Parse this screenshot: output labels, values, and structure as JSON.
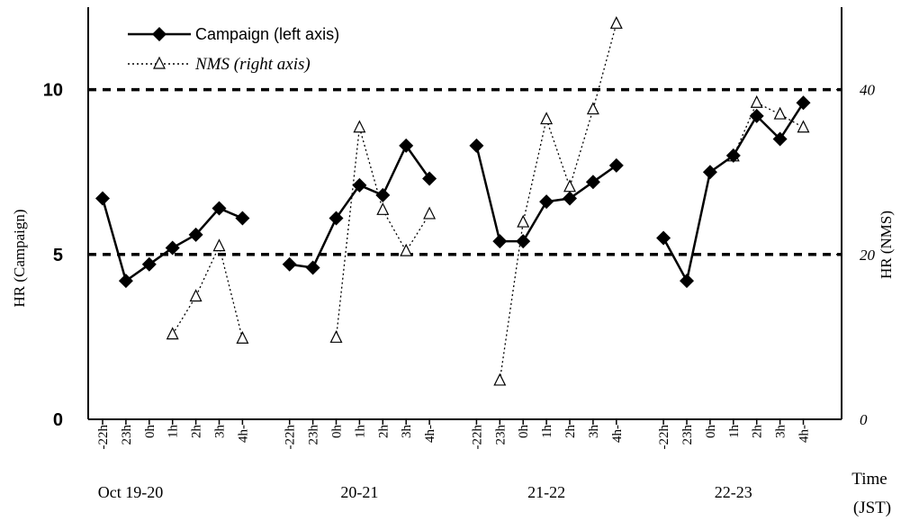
{
  "chart_data": {
    "type": "line",
    "title": "",
    "xlabel": "Time (JST)",
    "xlabel_lines": [
      "Time",
      "(JST)"
    ],
    "ylabel_left": "HR (Campaign)",
    "ylabel_right": "HR (NMS)",
    "ylim_left": [
      0,
      12.5
    ],
    "ylim_right": [
      0,
      50
    ],
    "yticks_left": [
      0,
      5,
      10
    ],
    "yticks_right": [
      0,
      20,
      40
    ],
    "reference_lines_left": [
      5,
      10
    ],
    "groups": [
      {
        "label": "Oct 19-20",
        "categories": [
          "-22h",
          "23h",
          "0h",
          "1h",
          "2h",
          "3h",
          "4h-"
        ]
      },
      {
        "label": "20-21",
        "categories": [
          "-22h",
          "23h",
          "0h",
          "1h",
          "2h",
          "3h",
          "4h-"
        ]
      },
      {
        "label": "21-22",
        "categories": [
          "-22h",
          "23h",
          "0h",
          "1h",
          "2h",
          "3h",
          "4h-"
        ]
      },
      {
        "label": "22-23",
        "categories": [
          "-22h",
          "23h",
          "0h",
          "1h",
          "2h",
          "3h",
          "4h-"
        ]
      }
    ],
    "series": [
      {
        "name": "Campaign (left axis)",
        "axis": "left",
        "marker": "diamond",
        "line": "solid",
        "values": [
          [
            6.7,
            4.2,
            4.7,
            5.2,
            5.6,
            6.4,
            6.1
          ],
          [
            4.7,
            4.6,
            6.1,
            7.1,
            6.8,
            8.3,
            7.3
          ],
          [
            8.3,
            5.4,
            5.4,
            6.6,
            6.7,
            7.2,
            7.7
          ],
          [
            5.5,
            4.2,
            7.5,
            8.0,
            9.2,
            8.5,
            9.6
          ]
        ]
      },
      {
        "name": "NMS (right axis)",
        "axis": "right",
        "marker": "triangle",
        "line": "dotted",
        "values": [
          [
            null,
            null,
            null,
            10.3,
            14.9,
            21.0,
            9.8
          ],
          [
            null,
            null,
            9.9,
            35.4,
            25.4,
            20.4,
            24.9
          ],
          [
            null,
            4.7,
            23.9,
            36.4,
            28.2,
            37.6,
            48.0
          ],
          [
            null,
            null,
            null,
            31.9,
            38.4,
            37.0,
            35.4
          ]
        ]
      }
    ],
    "legend_position": "top-left",
    "grid": false
  }
}
